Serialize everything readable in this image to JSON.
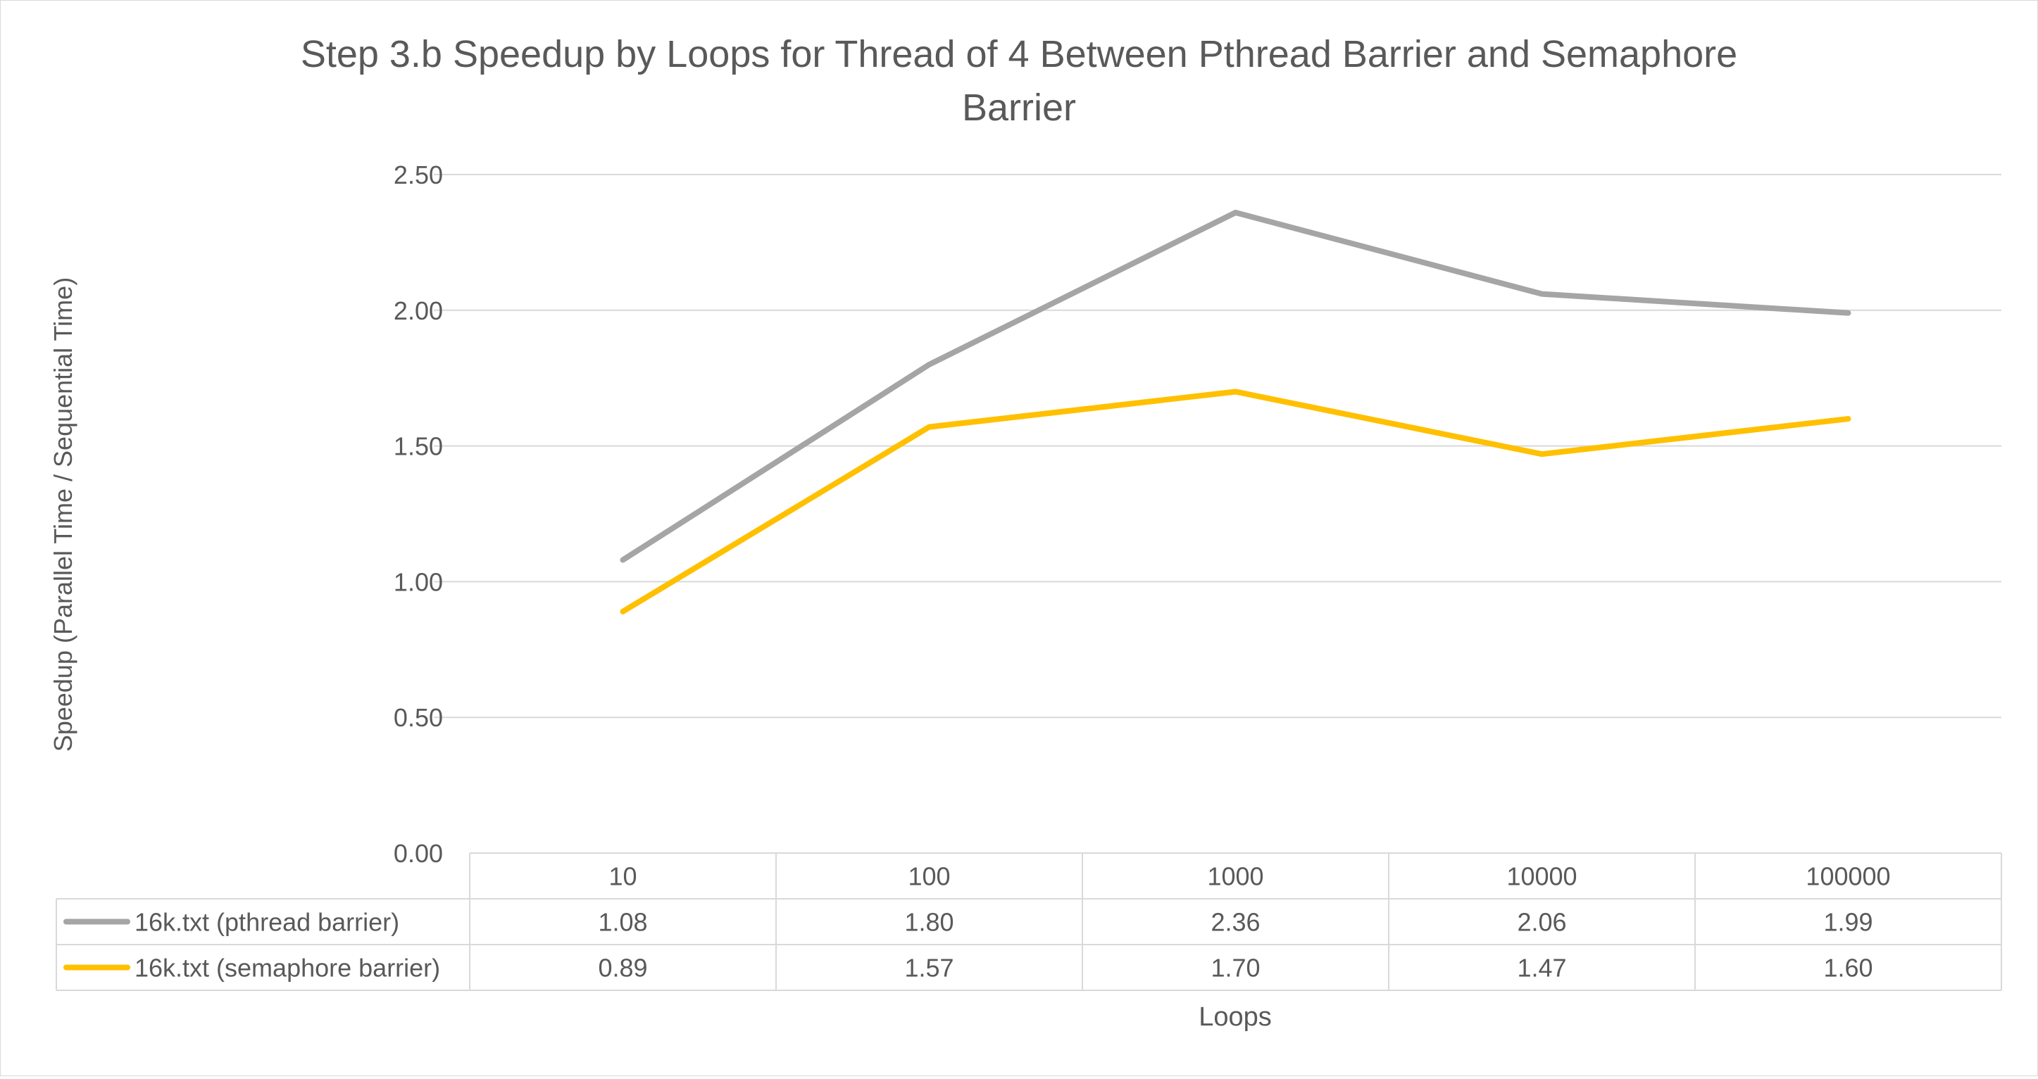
{
  "chart_data": {
    "type": "line",
    "title": "Step 3.b Speedup by Loops for Thread of 4 Between Pthread Barrier and Semaphore Barrier",
    "title_lines": [
      "Step 3.b Speedup by Loops for Thread of 4 Between Pthread Barrier and Semaphore",
      "Barrier"
    ],
    "xlabel": "Loops",
    "ylabel": "Speedup (Parallel Time / Sequential Time)",
    "categories": [
      "10",
      "100",
      "1000",
      "10000",
      "100000"
    ],
    "ylim": [
      0,
      2.5
    ],
    "yticks": [
      "0.00",
      "0.50",
      "1.00",
      "1.50",
      "2.00",
      "2.50"
    ],
    "grid": true,
    "legend": "data-table",
    "series": [
      {
        "name": "16k.txt (pthread barrier)",
        "color": "#a5a5a5",
        "values": [
          1.08,
          1.8,
          2.36,
          2.06,
          1.99
        ],
        "labels": [
          "1.08",
          "1.80",
          "2.36",
          "2.06",
          "1.99"
        ]
      },
      {
        "name": "16k.txt (semaphore barrier)",
        "color": "#ffc000",
        "values": [
          0.89,
          1.57,
          1.7,
          1.47,
          1.6
        ],
        "labels": [
          "0.89",
          "1.57",
          "1.70",
          "1.47",
          "1.60"
        ]
      }
    ]
  }
}
